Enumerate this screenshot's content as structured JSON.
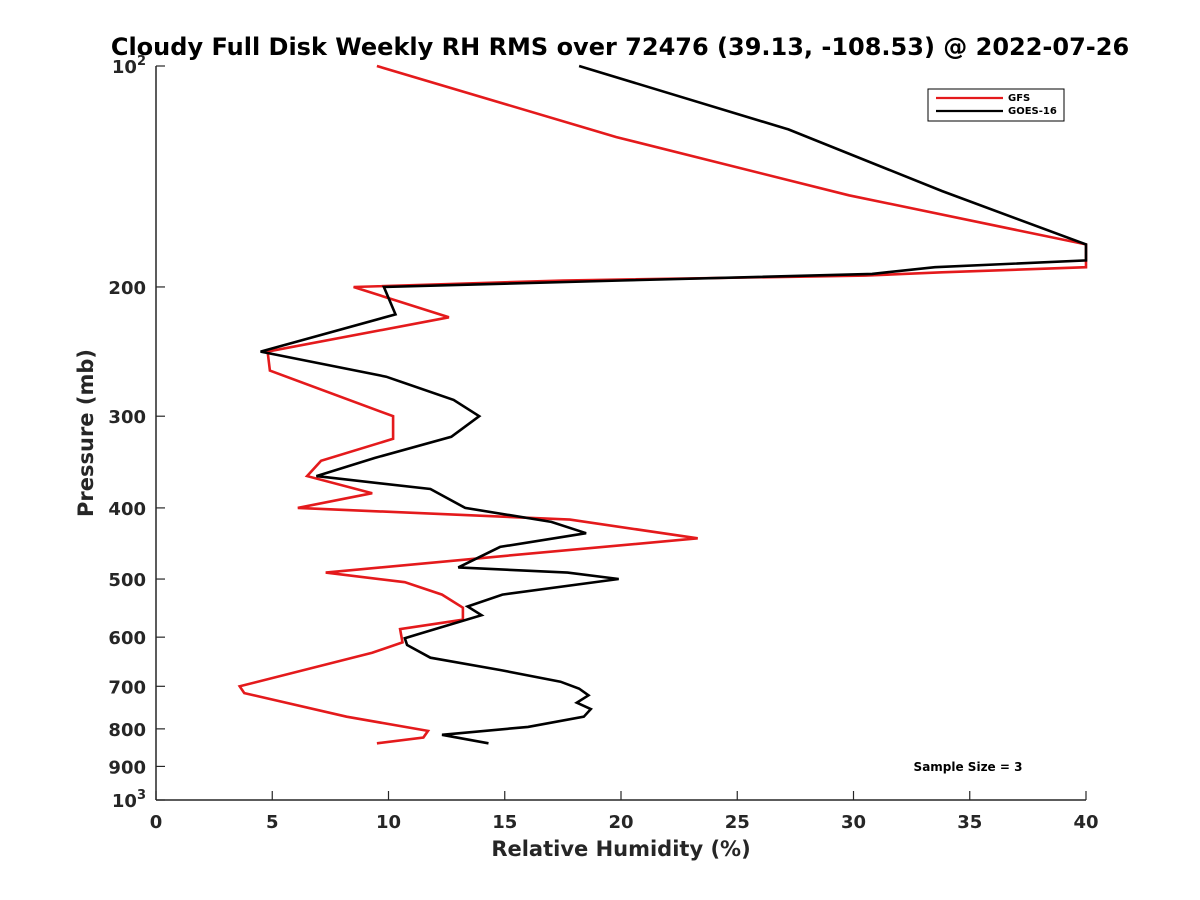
{
  "chart_data": {
    "type": "line",
    "title": "Cloudy Full Disk Weekly RH RMS over 72476 (39.13, -108.53) @ 2022-07-26",
    "xlabel": "Relative Humidity (%)",
    "ylabel": "Pressure (mb)",
    "xlim": [
      0,
      40
    ],
    "ylim": [
      100,
      1000
    ],
    "y_scale": "log",
    "y_reversed": true,
    "grid": false,
    "legend_position": "top-right",
    "x_ticks": [
      {
        "value": 0,
        "label": "0"
      },
      {
        "value": 5,
        "label": "5"
      },
      {
        "value": 10,
        "label": "10"
      },
      {
        "value": 15,
        "label": "15"
      },
      {
        "value": 20,
        "label": "20"
      },
      {
        "value": 25,
        "label": "25"
      },
      {
        "value": 30,
        "label": "30"
      },
      {
        "value": 35,
        "label": "35"
      },
      {
        "value": 40,
        "label": "40"
      }
    ],
    "y_ticks": [
      {
        "value": 100,
        "base": "10",
        "exp": "2"
      },
      {
        "value": 200,
        "label": "200"
      },
      {
        "value": 300,
        "label": "300"
      },
      {
        "value": 400,
        "label": "400"
      },
      {
        "value": 500,
        "label": "500"
      },
      {
        "value": 600,
        "label": "600"
      },
      {
        "value": 700,
        "label": "700"
      },
      {
        "value": 800,
        "label": "800"
      },
      {
        "value": 900,
        "label": "900"
      },
      {
        "value": 1000,
        "base": "10",
        "exp": "3"
      }
    ],
    "series": [
      {
        "name": "GFS",
        "color": "#e41a1c",
        "points": [
          {
            "rh": 9.5,
            "p": 100
          },
          {
            "rh": 19.8,
            "p": 125
          },
          {
            "rh": 29.8,
            "p": 150
          },
          {
            "rh": 40.0,
            "p": 175
          },
          {
            "rh": 40.0,
            "p": 188
          },
          {
            "rh": 33.8,
            "p": 191
          },
          {
            "rh": 30.5,
            "p": 193
          },
          {
            "rh": 17.5,
            "p": 196
          },
          {
            "rh": 8.5,
            "p": 200
          },
          {
            "rh": 12.6,
            "p": 220
          },
          {
            "rh": 4.8,
            "p": 245
          },
          {
            "rh": 4.9,
            "p": 260
          },
          {
            "rh": 10.2,
            "p": 300
          },
          {
            "rh": 10.2,
            "p": 322
          },
          {
            "rh": 7.1,
            "p": 345
          },
          {
            "rh": 6.5,
            "p": 362
          },
          {
            "rh": 9.3,
            "p": 382
          },
          {
            "rh": 6.1,
            "p": 400
          },
          {
            "rh": 17.8,
            "p": 415
          },
          {
            "rh": 23.3,
            "p": 440
          },
          {
            "rh": 15.0,
            "p": 465
          },
          {
            "rh": 7.3,
            "p": 490
          },
          {
            "rh": 10.7,
            "p": 505
          },
          {
            "rh": 12.3,
            "p": 525
          },
          {
            "rh": 13.2,
            "p": 547
          },
          {
            "rh": 13.2,
            "p": 568
          },
          {
            "rh": 10.5,
            "p": 585
          },
          {
            "rh": 10.6,
            "p": 610
          },
          {
            "rh": 9.3,
            "p": 630
          },
          {
            "rh": 3.6,
            "p": 700
          },
          {
            "rh": 3.8,
            "p": 715
          },
          {
            "rh": 8.2,
            "p": 770
          },
          {
            "rh": 11.7,
            "p": 805
          },
          {
            "rh": 11.5,
            "p": 822
          },
          {
            "rh": 9.5,
            "p": 837
          }
        ]
      },
      {
        "name": "GOES-16",
        "color": "#000000",
        "points": [
          {
            "rh": 18.2,
            "p": 100
          },
          {
            "rh": 27.2,
            "p": 122
          },
          {
            "rh": 33.8,
            "p": 148
          },
          {
            "rh": 40.0,
            "p": 175
          },
          {
            "rh": 40.0,
            "p": 184
          },
          {
            "rh": 33.5,
            "p": 188
          },
          {
            "rh": 30.8,
            "p": 192
          },
          {
            "rh": 20.0,
            "p": 196
          },
          {
            "rh": 9.8,
            "p": 200
          },
          {
            "rh": 10.3,
            "p": 218
          },
          {
            "rh": 4.5,
            "p": 245
          },
          {
            "rh": 9.9,
            "p": 265
          },
          {
            "rh": 12.8,
            "p": 285
          },
          {
            "rh": 13.9,
            "p": 300
          },
          {
            "rh": 12.7,
            "p": 320
          },
          {
            "rh": 9.4,
            "p": 342
          },
          {
            "rh": 6.9,
            "p": 362
          },
          {
            "rh": 11.8,
            "p": 377
          },
          {
            "rh": 13.3,
            "p": 400
          },
          {
            "rh": 17.0,
            "p": 418
          },
          {
            "rh": 18.5,
            "p": 433
          },
          {
            "rh": 14.8,
            "p": 452
          },
          {
            "rh": 13.0,
            "p": 482
          },
          {
            "rh": 17.7,
            "p": 490
          },
          {
            "rh": 19.9,
            "p": 500
          },
          {
            "rh": 14.9,
            "p": 525
          },
          {
            "rh": 13.4,
            "p": 545
          },
          {
            "rh": 14.0,
            "p": 560
          },
          {
            "rh": 12.0,
            "p": 585
          },
          {
            "rh": 10.7,
            "p": 602
          },
          {
            "rh": 10.8,
            "p": 615
          },
          {
            "rh": 11.8,
            "p": 640
          },
          {
            "rh": 14.8,
            "p": 665
          },
          {
            "rh": 17.4,
            "p": 690
          },
          {
            "rh": 18.2,
            "p": 705
          },
          {
            "rh": 18.6,
            "p": 720
          },
          {
            "rh": 18.1,
            "p": 737
          },
          {
            "rh": 18.7,
            "p": 752
          },
          {
            "rh": 18.4,
            "p": 770
          },
          {
            "rh": 16.0,
            "p": 795
          },
          {
            "rh": 12.3,
            "p": 815
          },
          {
            "rh": 14.3,
            "p": 837
          }
        ]
      }
    ],
    "annotations": [
      {
        "text": "Sample Size = 3"
      }
    ]
  }
}
